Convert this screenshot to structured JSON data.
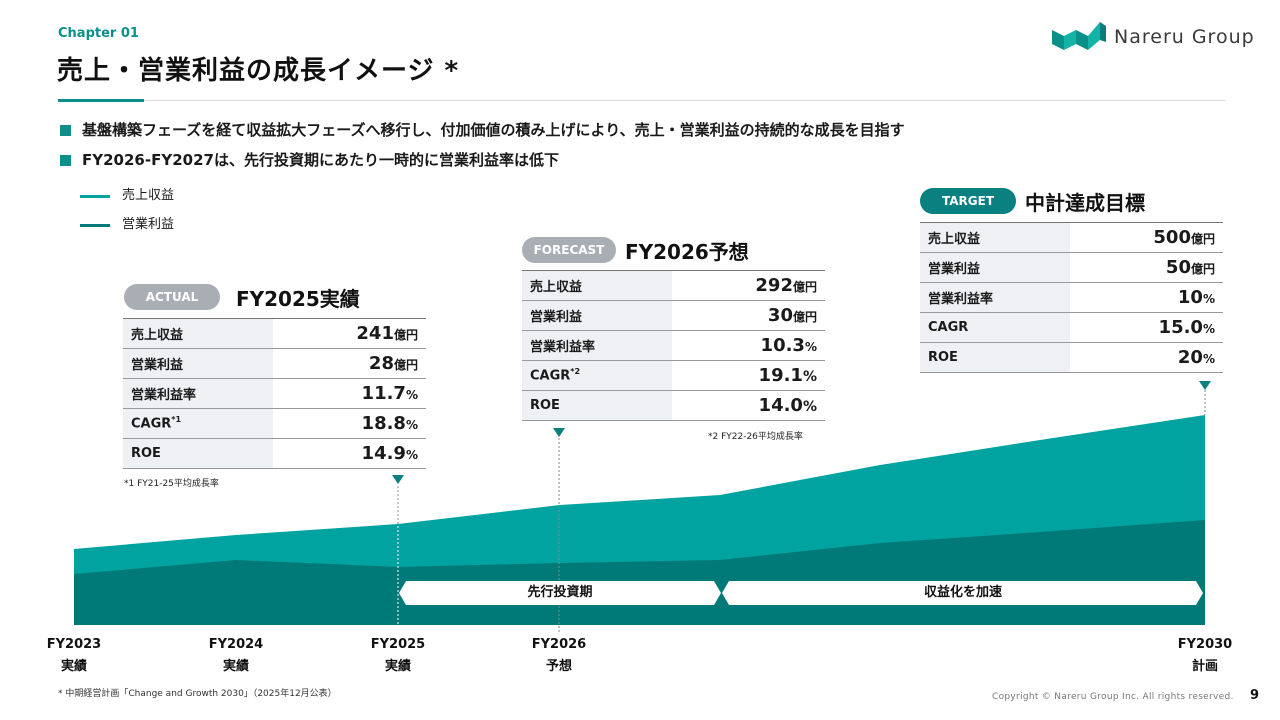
{
  "header": {
    "chapter": "Chapter 01",
    "title": "売上・営業利益の成長イメージ *",
    "logo_text": "Nareru Group"
  },
  "bullets": [
    "基盤構築フェーズを経て収益拡大フェーズへ移行し、付加価値の積み上げにより、売上・営業利益の持続的な成長を目指す",
    "FY2026-FY2027は、先行投資期にあたり一時的に営業利益率は低下"
  ],
  "legend": [
    {
      "label": "売上収益",
      "color": "#00a3a0"
    },
    {
      "label": "営業利益",
      "color": "#007a78"
    }
  ],
  "boxes": {
    "actual": {
      "badge": "ACTUAL",
      "title": "FY2025実績",
      "rows": [
        {
          "label": "売上収益",
          "value": "241",
          "unit": "億円"
        },
        {
          "label": "営業利益",
          "value": "28",
          "unit": "億円"
        },
        {
          "label": "営業利益率",
          "value": "11.7",
          "unit": "%"
        },
        {
          "label": "CAGR",
          "sup": "*1",
          "value": "18.8",
          "unit": "%"
        },
        {
          "label": "ROE",
          "value": "14.9",
          "unit": "%"
        }
      ],
      "note": "*1 FY21-25平均成長率"
    },
    "forecast": {
      "badge": "FORECAST",
      "title": "FY2026予想",
      "rows": [
        {
          "label": "売上収益",
          "value": "292",
          "unit": "億円"
        },
        {
          "label": "営業利益",
          "value": "30",
          "unit": "億円"
        },
        {
          "label": "営業利益率",
          "value": "10.3",
          "unit": "%"
        },
        {
          "label": "CAGR",
          "sup": "*2",
          "value": "19.1",
          "unit": "%"
        },
        {
          "label": "ROE",
          "value": "14.0",
          "unit": "%"
        }
      ],
      "note": "*2 FY22-26平均成長率"
    },
    "target": {
      "badge": "TARGET",
      "title": "中計達成目標",
      "rows": [
        {
          "label": "売上収益",
          "value": "500",
          "unit": "億円"
        },
        {
          "label": "営業利益",
          "value": "50",
          "unit": "億円"
        },
        {
          "label": "営業利益率",
          "value": "10",
          "unit": "%"
        },
        {
          "label": "CAGR",
          "value": "15.0",
          "unit": "%"
        },
        {
          "label": "ROE",
          "value": "20",
          "unit": "%"
        }
      ]
    }
  },
  "periods": {
    "investment": "先行投資期",
    "acceleration": "収益化を加速"
  },
  "x_labels": [
    {
      "year": "FY2023",
      "kind": "実績"
    },
    {
      "year": "FY2024",
      "kind": "実績"
    },
    {
      "year": "FY2025",
      "kind": "実績"
    },
    {
      "year": "FY2026",
      "kind": "予想"
    },
    {
      "year": "FY2030",
      "kind": "計画"
    }
  ],
  "footnote": "* 中期経営計画「Change and Growth 2030」（2025年12月公表）",
  "copyright": "Copyright © Nareru Group Inc. All rights reserved.",
  "page_number": "9"
}
